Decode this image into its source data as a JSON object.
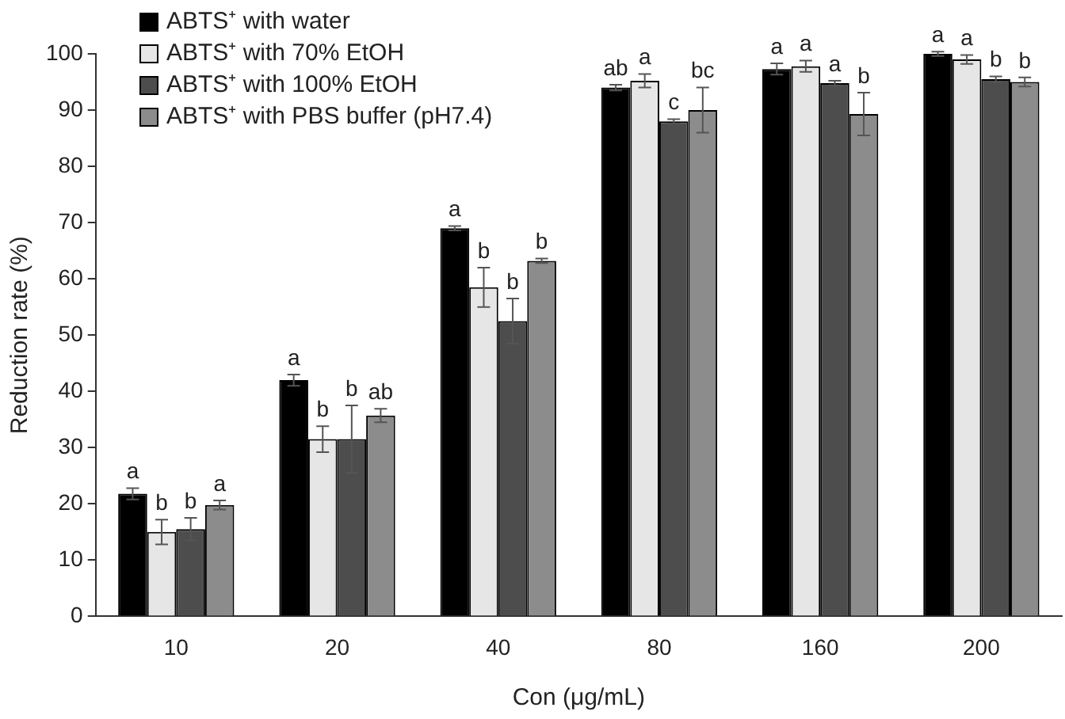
{
  "chart_data": {
    "type": "bar",
    "xlabel": "Con (μg/mL)",
    "ylabel": "Reduction rate (%)",
    "categories": [
      "10",
      "20",
      "40",
      "80",
      "160",
      "200"
    ],
    "series": [
      {
        "name": "ABTS⁺ with water",
        "color": "#000000",
        "values": [
          21.8,
          42,
          69,
          94,
          97.3,
          100
        ],
        "errors": [
          1,
          1,
          0.4,
          0.5,
          1,
          0.4
        ],
        "value_labels": [
          "a",
          "a",
          "a",
          "ab",
          "a",
          "a"
        ]
      },
      {
        "name": "ABTS⁺ with 70% EtOH",
        "color": "#e6e6e6",
        "values": [
          15,
          31.5,
          58.5,
          95.2,
          97.8,
          99
        ],
        "errors": [
          2.2,
          2.3,
          3.5,
          1.2,
          1,
          0.8
        ],
        "value_labels": [
          "b",
          "b",
          "b",
          "a",
          "a",
          "a"
        ]
      },
      {
        "name": "ABTS⁺ with 100% EtOH",
        "color": "#4d4d4d",
        "values": [
          15.5,
          31.5,
          52.5,
          88,
          94.8,
          95.5
        ],
        "errors": [
          2,
          6,
          4,
          0.4,
          0.4,
          0.5
        ],
        "value_labels": [
          "b",
          "b",
          "b",
          "c",
          "a",
          "b"
        ]
      },
      {
        "name": "ABTS⁺ with PBS buffer (pH7.4)",
        "color": "#8c8c8c",
        "values": [
          19.8,
          35.7,
          63.2,
          90,
          89.3,
          95
        ],
        "errors": [
          0.8,
          1.2,
          0.4,
          4,
          3.8,
          0.8
        ],
        "value_labels": [
          "a",
          "ab",
          "b",
          "bc",
          "b",
          "b"
        ]
      }
    ],
    "ylim": [
      0,
      100
    ],
    "yticks": [
      0,
      10,
      20,
      30,
      40,
      50,
      60,
      70,
      80,
      90,
      100
    ],
    "grid": false,
    "legend": "top left"
  }
}
